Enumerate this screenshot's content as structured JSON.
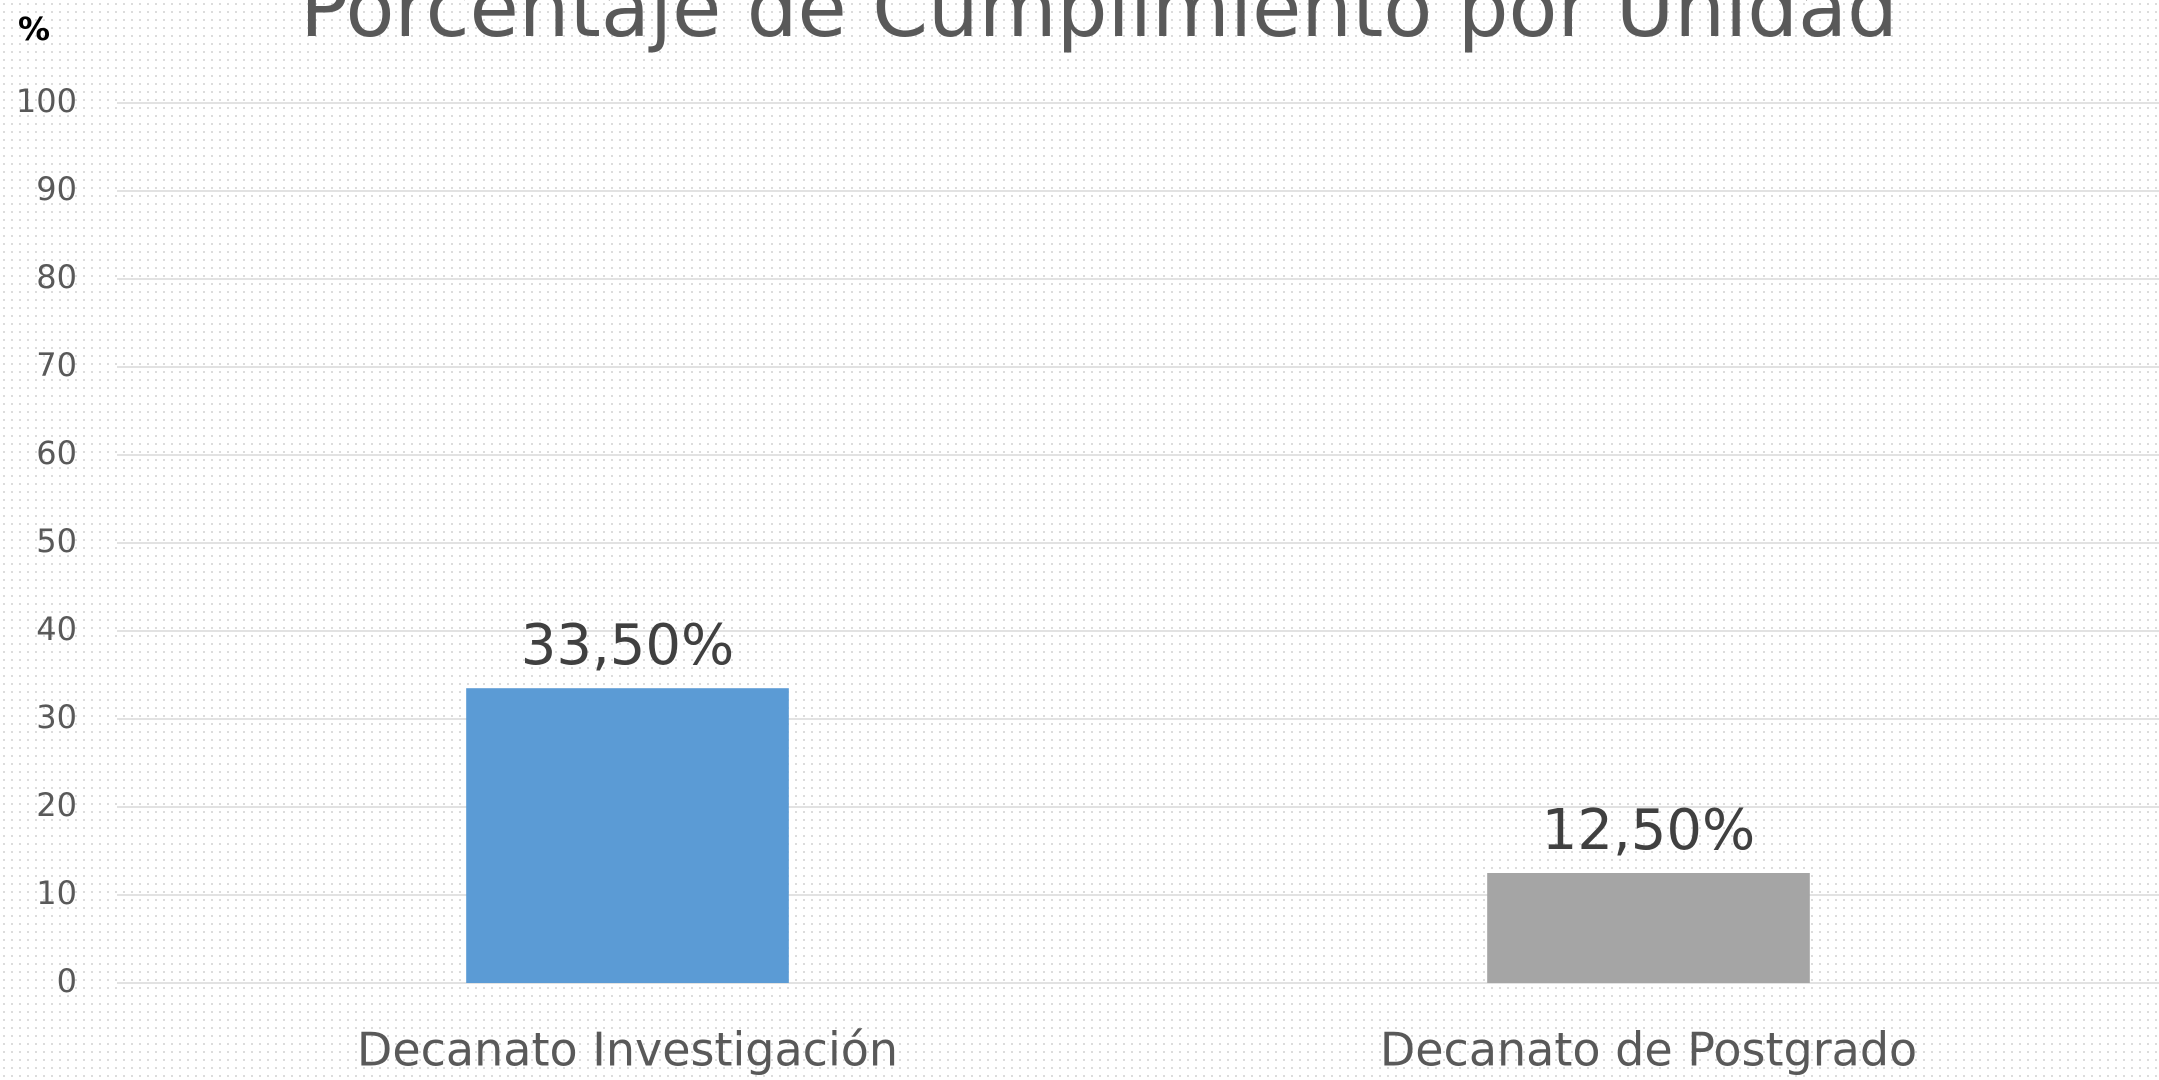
{
  "chart_data": {
    "type": "bar",
    "title": "Porcentaje de Cumplimiento por Unidad",
    "y_label": "%",
    "categories": [
      "Decanato Investigación",
      "Decanato de Postgrado"
    ],
    "values": [
      33.5,
      12.5
    ],
    "value_labels": [
      "33,50%",
      "12,50%"
    ],
    "colors": [
      "#5b9bd5",
      "#a5a5a5"
    ],
    "ylim": [
      0,
      100
    ],
    "yticks": [
      0,
      10,
      20,
      30,
      40,
      50,
      60,
      70,
      80,
      90,
      100
    ],
    "grid": true
  }
}
